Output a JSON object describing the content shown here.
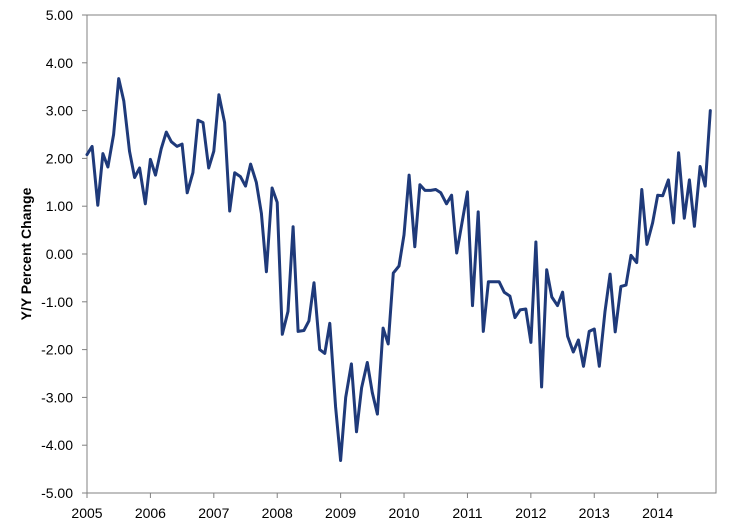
{
  "chart_data": {
    "type": "line",
    "title": "",
    "xlabel": "",
    "ylabel": "Y/Y Percent Change",
    "ylim": [
      -5,
      5
    ],
    "xlim": [
      2005,
      2014.92
    ],
    "yticks": [
      "5.00",
      "4.00",
      "3.00",
      "2.00",
      "1.00",
      "0.00",
      "-1.00",
      "-2.00",
      "-3.00",
      "-4.00",
      "-5.00"
    ],
    "xticks": [
      "2005",
      "2006",
      "2007",
      "2008",
      "2009",
      "2010",
      "2011",
      "2012",
      "2013",
      "2014"
    ],
    "grid": false,
    "legend": "none",
    "series_color": "#1f3a7a",
    "series": [
      {
        "values": [
          [
            2005.0,
            2.08
          ],
          [
            2005.08,
            2.25
          ],
          [
            2005.17,
            1.02
          ],
          [
            2005.25,
            2.1
          ],
          [
            2005.33,
            1.82
          ],
          [
            2005.42,
            2.5
          ],
          [
            2005.5,
            3.67
          ],
          [
            2005.58,
            3.2
          ],
          [
            2005.67,
            2.15
          ],
          [
            2005.75,
            1.6
          ],
          [
            2005.83,
            1.8
          ],
          [
            2005.92,
            1.05
          ],
          [
            2006.0,
            1.98
          ],
          [
            2006.08,
            1.65
          ],
          [
            2006.17,
            2.2
          ],
          [
            2006.25,
            2.55
          ],
          [
            2006.33,
            2.35
          ],
          [
            2006.42,
            2.25
          ],
          [
            2006.5,
            2.3
          ],
          [
            2006.58,
            1.28
          ],
          [
            2006.67,
            1.7
          ],
          [
            2006.75,
            2.8
          ],
          [
            2006.83,
            2.75
          ],
          [
            2006.92,
            1.8
          ],
          [
            2007.0,
            2.15
          ],
          [
            2007.08,
            3.33
          ],
          [
            2007.17,
            2.75
          ],
          [
            2007.25,
            0.9
          ],
          [
            2007.33,
            1.7
          ],
          [
            2007.42,
            1.62
          ],
          [
            2007.5,
            1.42
          ],
          [
            2007.58,
            1.88
          ],
          [
            2007.67,
            1.5
          ],
          [
            2007.75,
            0.85
          ],
          [
            2007.83,
            -0.37
          ],
          [
            2007.92,
            1.38
          ],
          [
            2008.0,
            1.08
          ],
          [
            2008.08,
            -1.68
          ],
          [
            2008.17,
            -1.2
          ],
          [
            2008.25,
            0.57
          ],
          [
            2008.33,
            -1.62
          ],
          [
            2008.42,
            -1.6
          ],
          [
            2008.5,
            -1.4
          ],
          [
            2008.58,
            -0.6
          ],
          [
            2008.67,
            -2.0
          ],
          [
            2008.75,
            -2.08
          ],
          [
            2008.83,
            -1.45
          ],
          [
            2008.92,
            -3.2
          ],
          [
            2009.0,
            -4.32
          ],
          [
            2009.08,
            -3.0
          ],
          [
            2009.17,
            -2.3
          ],
          [
            2009.25,
            -3.72
          ],
          [
            2009.33,
            -2.8
          ],
          [
            2009.42,
            -2.27
          ],
          [
            2009.5,
            -2.9
          ],
          [
            2009.58,
            -3.35
          ],
          [
            2009.67,
            -1.55
          ],
          [
            2009.75,
            -1.88
          ],
          [
            2009.83,
            -0.4
          ],
          [
            2009.92,
            -0.25
          ],
          [
            2010.0,
            0.4
          ],
          [
            2010.08,
            1.65
          ],
          [
            2010.17,
            0.15
          ],
          [
            2010.25,
            1.45
          ],
          [
            2010.33,
            1.33
          ],
          [
            2010.42,
            1.33
          ],
          [
            2010.5,
            1.35
          ],
          [
            2010.58,
            1.28
          ],
          [
            2010.67,
            1.05
          ],
          [
            2010.75,
            1.23
          ],
          [
            2010.83,
            0.02
          ],
          [
            2010.92,
            0.7
          ],
          [
            2011.0,
            1.3
          ],
          [
            2011.08,
            -1.08
          ],
          [
            2011.17,
            0.88
          ],
          [
            2011.25,
            -1.62
          ],
          [
            2011.33,
            -0.58
          ],
          [
            2011.42,
            -0.58
          ],
          [
            2011.5,
            -0.58
          ],
          [
            2011.58,
            -0.8
          ],
          [
            2011.67,
            -0.88
          ],
          [
            2011.75,
            -1.33
          ],
          [
            2011.83,
            -1.17
          ],
          [
            2011.92,
            -1.15
          ],
          [
            2012.0,
            -1.85
          ],
          [
            2012.08,
            0.25
          ],
          [
            2012.17,
            -2.78
          ],
          [
            2012.25,
            -0.33
          ],
          [
            2012.33,
            -0.9
          ],
          [
            2012.42,
            -1.08
          ],
          [
            2012.5,
            -0.8
          ],
          [
            2012.58,
            -1.72
          ],
          [
            2012.67,
            -2.05
          ],
          [
            2012.75,
            -1.8
          ],
          [
            2012.83,
            -2.35
          ],
          [
            2012.92,
            -1.62
          ],
          [
            2013.0,
            -1.57
          ],
          [
            2013.08,
            -2.35
          ],
          [
            2013.17,
            -1.2
          ],
          [
            2013.25,
            -0.42
          ],
          [
            2013.33,
            -1.63
          ],
          [
            2013.42,
            -0.68
          ],
          [
            2013.5,
            -0.65
          ],
          [
            2013.58,
            -0.03
          ],
          [
            2013.67,
            -0.18
          ],
          [
            2013.75,
            1.35
          ],
          [
            2013.83,
            0.2
          ],
          [
            2013.92,
            0.65
          ],
          [
            2014.0,
            1.23
          ],
          [
            2014.08,
            1.22
          ],
          [
            2014.17,
            1.55
          ],
          [
            2014.25,
            0.65
          ],
          [
            2014.33,
            2.12
          ],
          [
            2014.42,
            0.75
          ],
          [
            2014.5,
            1.55
          ],
          [
            2014.58,
            0.58
          ],
          [
            2014.67,
            1.83
          ],
          [
            2014.75,
            1.42
          ],
          [
            2014.83,
            3.0
          ]
        ]
      }
    ]
  }
}
